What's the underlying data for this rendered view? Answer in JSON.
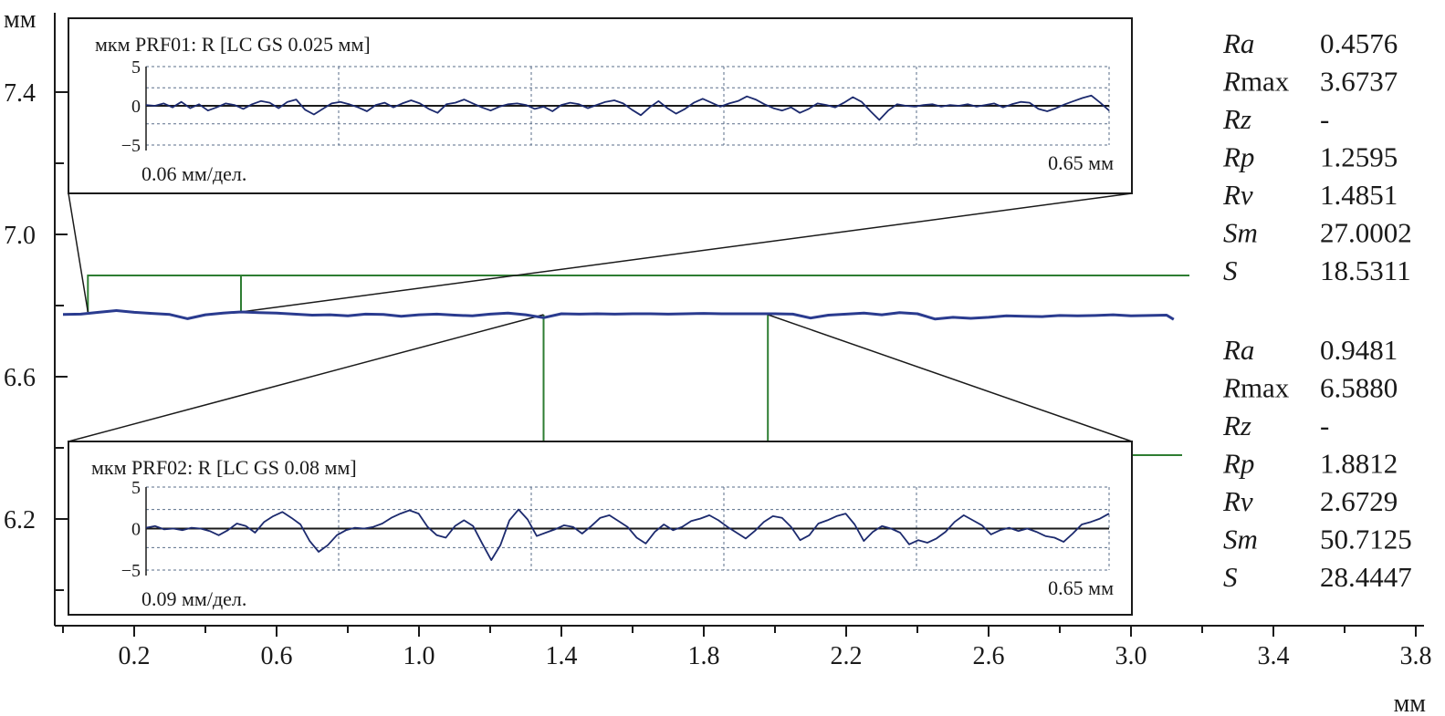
{
  "chart_data": {
    "type": "line",
    "xlabel": "мм",
    "ylabel": "мм",
    "xlim": [
      0,
      3.8
    ],
    "ylim": [
      5.9,
      7.6
    ],
    "x_ticks": [
      "0.2",
      "0.6",
      "1.0",
      "1.4",
      "1.8",
      "2.2",
      "2.6",
      "3.0",
      "3.4",
      "3.8"
    ],
    "y_ticks": [
      "7.4",
      "7.0",
      "6.6",
      "6.2"
    ],
    "main_profile": {
      "x": [
        0.0,
        0.05,
        0.1,
        0.15,
        0.2,
        0.25,
        0.3,
        0.35,
        0.4,
        0.45,
        0.5,
        0.55,
        0.6,
        0.65,
        0.7,
        0.75,
        0.8,
        0.85,
        0.9,
        0.95,
        1.0,
        1.05,
        1.1,
        1.15,
        1.2,
        1.25,
        1.3,
        1.35,
        1.4,
        1.45,
        1.5,
        1.55,
        1.6,
        1.65,
        1.7,
        1.75,
        1.8,
        1.85,
        1.9,
        1.95,
        2.0,
        2.05,
        2.1,
        2.15,
        2.2,
        2.25,
        2.3,
        2.35,
        2.4,
        2.45,
        2.5,
        2.55,
        2.6,
        2.65,
        2.7,
        2.75,
        2.8,
        2.85,
        2.9,
        2.95,
        3.0,
        3.05,
        3.1,
        3.12
      ],
      "y": [
        6.775,
        6.776,
        6.781,
        6.786,
        6.781,
        6.778,
        6.775,
        6.763,
        6.774,
        6.779,
        6.782,
        6.78,
        6.779,
        6.776,
        6.773,
        6.774,
        6.771,
        6.776,
        6.775,
        6.77,
        6.774,
        6.776,
        6.773,
        6.771,
        6.776,
        6.779,
        6.774,
        6.766,
        6.777,
        6.776,
        6.777,
        6.776,
        6.777,
        6.777,
        6.776,
        6.777,
        6.778,
        6.777,
        6.777,
        6.777,
        6.777,
        6.776,
        6.765,
        6.773,
        6.776,
        6.779,
        6.774,
        6.78,
        6.777,
        6.762,
        6.767,
        6.764,
        6.767,
        6.771,
        6.77,
        6.769,
        6.772,
        6.771,
        6.772,
        6.774,
        6.771,
        6.772,
        6.773,
        6.761
      ]
    },
    "selections": [
      {
        "name": "PRF01",
        "x_start": 0.07,
        "x_end": 0.5
      },
      {
        "name": "PRF02",
        "x_start": 1.35,
        "x_end": 1.98
      }
    ],
    "insets": [
      {
        "title": "мкм PRF01: R [LC GS 0.025 мм]",
        "scale_label": "0.06 мм/дел.",
        "length_label": "0.65 мм",
        "y_ticks": [
          "5",
          "0",
          "−5"
        ],
        "ylim": [
          -5,
          5
        ],
        "y": [
          0.1,
          0.0,
          0.3,
          -0.2,
          0.5,
          -0.3,
          0.2,
          -0.6,
          -0.2,
          0.3,
          0.1,
          -0.4,
          0.2,
          0.6,
          0.4,
          -0.3,
          0.5,
          0.8,
          -0.5,
          -1.1,
          -0.4,
          0.3,
          0.5,
          0.2,
          -0.2,
          -0.7,
          0.1,
          0.4,
          -0.2,
          0.3,
          0.7,
          0.3,
          -0.4,
          -0.9,
          0.2,
          0.4,
          0.8,
          0.3,
          -0.2,
          -0.6,
          -0.1,
          0.2,
          0.3,
          0.1,
          -0.4,
          -0.1,
          -0.7,
          0.1,
          0.4,
          0.2,
          -0.3,
          0.1,
          0.5,
          0.7,
          0.3,
          -0.5,
          -1.2,
          -0.2,
          0.6,
          -0.3,
          -1.0,
          -0.4,
          0.4,
          0.9,
          0.4,
          -0.1,
          0.3,
          0.6,
          1.2,
          0.8,
          0.2,
          -0.3,
          -0.6,
          -0.2,
          -0.9,
          -0.4,
          0.3,
          0.1,
          -0.2,
          0.4,
          1.1,
          0.5,
          -0.7,
          -1.8,
          -0.6,
          0.2,
          0.0,
          -0.1,
          0.1,
          0.2,
          -0.1,
          0.1,
          0.0,
          0.2,
          -0.1,
          0.1,
          0.3,
          -0.2,
          0.2,
          0.5,
          0.4,
          -0.4,
          -0.7,
          -0.3,
          0.2,
          0.6,
          1.0,
          1.3,
          0.4,
          -0.6
        ]
      },
      {
        "title": "мкм PRF02: R [LC GS 0.08 мм]",
        "scale_label": "0.09 мм/дел.",
        "length_label": "0.65 мм",
        "y_ticks": [
          "5",
          "0",
          "−5"
        ],
        "ylim": [
          -5,
          5
        ],
        "y": [
          0.1,
          0.3,
          -0.1,
          0.0,
          -0.2,
          0.1,
          0.0,
          -0.3,
          -0.8,
          -0.2,
          0.6,
          0.3,
          -0.5,
          0.8,
          1.5,
          2.0,
          1.3,
          0.5,
          -1.5,
          -2.8,
          -2.0,
          -0.8,
          -0.2,
          0.1,
          0.0,
          0.2,
          0.6,
          1.3,
          1.8,
          2.2,
          1.8,
          0.2,
          -0.8,
          -1.1,
          0.3,
          1.0,
          0.3,
          -1.8,
          -3.8,
          -2.0,
          1.0,
          2.3,
          1.1,
          -0.9,
          -0.5,
          -0.1,
          0.4,
          0.2,
          -0.6,
          0.3,
          1.3,
          1.6,
          0.9,
          0.2,
          -1.1,
          -1.8,
          -0.4,
          0.5,
          -0.2,
          0.2,
          0.9,
          1.2,
          1.6,
          1.0,
          0.2,
          -0.5,
          -1.2,
          -0.3,
          0.8,
          1.5,
          1.3,
          0.2,
          -1.4,
          -0.8,
          0.6,
          1.0,
          1.5,
          1.8,
          0.5,
          -1.5,
          -0.4,
          0.3,
          0.0,
          -0.5,
          -1.9,
          -1.4,
          -1.7,
          -1.2,
          -0.4,
          0.8,
          1.6,
          1.0,
          0.4,
          -0.7,
          -0.2,
          0.1,
          -0.3,
          0.0,
          -0.4,
          -0.9,
          -1.1,
          -1.6,
          -0.6,
          0.5,
          0.8,
          1.2,
          1.8
        ]
      }
    ],
    "params": [
      [
        {
          "name": "Ra",
          "value": "0.4576"
        },
        {
          "name": "Rmax",
          "value": "3.6737"
        },
        {
          "name": "Rz",
          "value": "-"
        },
        {
          "name": "Rp",
          "value": "1.2595"
        },
        {
          "name": "Rv",
          "value": "1.4851"
        },
        {
          "name": "Sm",
          "value": "27.0002"
        },
        {
          "name": "S",
          "value": "18.5311"
        }
      ],
      [
        {
          "name": "Ra",
          "value": "0.9481"
        },
        {
          "name": "Rmax",
          "value": "6.5880"
        },
        {
          "name": "Rz",
          "value": "-"
        },
        {
          "name": "Rp",
          "value": "1.8812"
        },
        {
          "name": "Rv",
          "value": "2.6729"
        },
        {
          "name": "Sm",
          "value": "50.7125"
        },
        {
          "name": "S",
          "value": "28.4447"
        }
      ]
    ],
    "colors": {
      "main_line": "#2a3b8f",
      "inset_line": "#1c2a6e",
      "selection": "#2e7d32",
      "axis": "#1a1a1a",
      "grid": "#5a6e8a"
    }
  }
}
